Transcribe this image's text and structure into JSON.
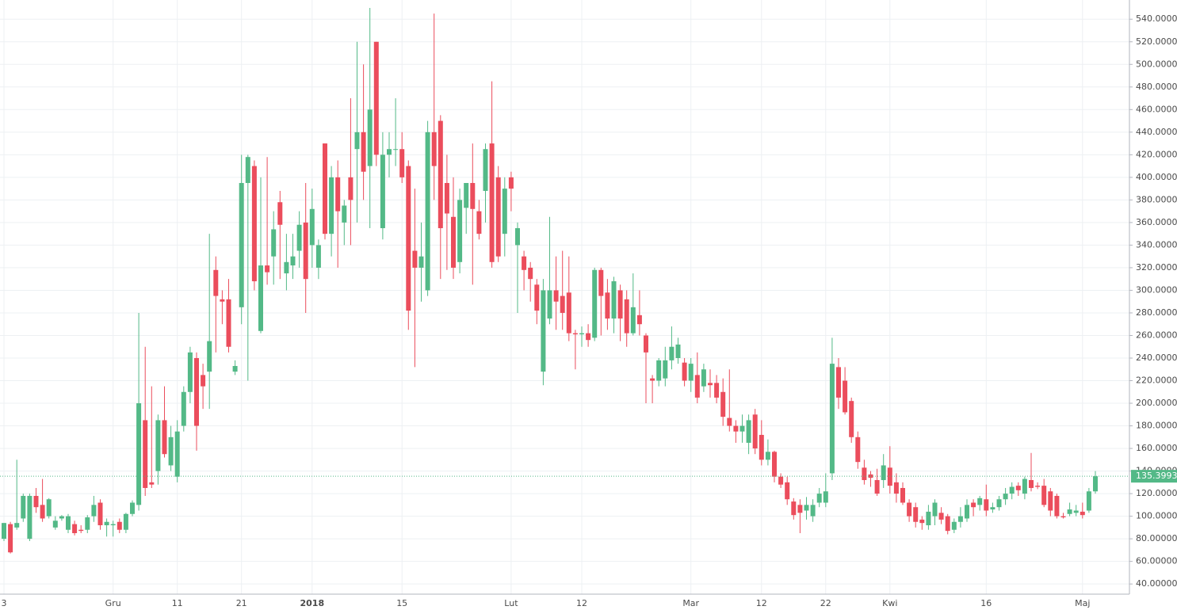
{
  "chart_data": {
    "type": "candlestick",
    "categories": [
      "3",
      null,
      null,
      null,
      null,
      null,
      null,
      null,
      null,
      null,
      null,
      null,
      null,
      null,
      null,
      null,
      null,
      "Gru",
      null,
      null,
      null,
      null,
      null,
      null,
      null,
      null,
      null,
      "11",
      null,
      null,
      null,
      null,
      null,
      null,
      null,
      null,
      null,
      "21",
      null,
      null,
      null,
      null,
      null,
      null,
      null,
      null,
      null,
      null,
      "2018",
      null,
      null,
      null,
      null,
      null,
      null,
      null,
      null,
      null,
      null,
      null,
      null,
      null,
      "15",
      null,
      null,
      null,
      null,
      null,
      null,
      null,
      null,
      null,
      null,
      null,
      null,
      null,
      null,
      null,
      null,
      "Lut",
      null,
      null,
      null,
      null,
      null,
      null,
      null,
      null,
      null,
      null,
      "12",
      null,
      null,
      null,
      null,
      null,
      null,
      null,
      null,
      null,
      null,
      null,
      null,
      null,
      null,
      null,
      null,
      "Mar",
      null,
      null,
      null,
      null,
      null,
      null,
      null,
      null,
      null,
      null,
      "12",
      null,
      null,
      null,
      null,
      null,
      null,
      null,
      null,
      null,
      "22",
      null,
      null,
      null,
      null,
      null,
      null,
      null,
      null,
      null,
      "Kwi",
      null,
      null,
      null,
      null,
      null,
      null,
      null,
      null,
      null,
      null,
      null,
      null,
      null,
      null,
      "16",
      null,
      null,
      null,
      null,
      null,
      null,
      null,
      null,
      null,
      null,
      null,
      null,
      null,
      null,
      "Maj",
      null,
      null
    ],
    "open": [
      80,
      93,
      90,
      98,
      80,
      118,
      110,
      100,
      90,
      98,
      88,
      93,
      88,
      88,
      100,
      112,
      92,
      92,
      95,
      88,
      102,
      110,
      185,
      130,
      140,
      185,
      145,
      135,
      180,
      210,
      240,
      225,
      228,
      318,
      292,
      292,
      228,
      285,
      395,
      410,
      264,
      322,
      330,
      378,
      315,
      322,
      335,
      360,
      340,
      320,
      430,
      350,
      400,
      360,
      400,
      425,
      440,
      410,
      520,
      355,
      420,
      425,
      425,
      410,
      335,
      320,
      300,
      440,
      450,
      395,
      365,
      325,
      373,
      395,
      370,
      388,
      430,
      400,
      350,
      400,
      340,
      330,
      320,
      305,
      228,
      275,
      300,
      295,
      298,
      262,
      261,
      262,
      258,
      318,
      298,
      275,
      300,
      292,
      262,
      278,
      260,
      222,
      220,
      222,
      238,
      240,
      236,
      220,
      225,
      215,
      218,
      218,
      210,
      187,
      180,
      175,
      165,
      190,
      172,
      150,
      157,
      135,
      130,
      113,
      110,
      105,
      100,
      112,
      112,
      138,
      232,
      220,
      202,
      170,
      143,
      137,
      132,
      132,
      143,
      130,
      125,
      112,
      108,
      97,
      92,
      100,
      103,
      100,
      88,
      95,
      98,
      112,
      110,
      115,
      106,
      108,
      115,
      120,
      127,
      120,
      132,
      127,
      127,
      122,
      118,
      100,
      102,
      103,
      104,
      105,
      122
    ],
    "high": [
      94,
      95,
      150,
      120,
      120,
      125,
      133,
      116,
      100,
      101,
      102,
      96,
      92,
      101,
      118,
      115,
      98,
      96,
      98,
      103,
      114,
      280,
      250,
      215,
      190,
      215,
      180,
      185,
      215,
      250,
      245,
      235,
      350,
      330,
      300,
      310,
      238,
      420,
      420,
      415,
      400,
      418,
      370,
      388,
      350,
      350,
      370,
      395,
      390,
      345,
      430,
      410,
      415,
      380,
      470,
      520,
      500,
      550,
      520,
      440,
      440,
      470,
      440,
      415,
      390,
      360,
      450,
      545,
      455,
      420,
      400,
      390,
      395,
      430,
      380,
      430,
      485,
      410,
      400,
      405,
      360,
      335,
      325,
      310,
      310,
      365,
      330,
      335,
      330,
      265,
      268,
      270,
      320,
      320,
      310,
      312,
      305,
      300,
      315,
      300,
      262,
      225,
      240,
      250,
      268,
      258,
      240,
      240,
      245,
      235,
      230,
      225,
      222,
      230,
      185,
      190,
      190,
      195,
      185,
      168,
      158,
      138,
      135,
      116,
      115,
      117,
      115,
      125,
      138,
      258,
      240,
      232,
      205,
      175,
      150,
      140,
      142,
      155,
      162,
      138,
      130,
      115,
      112,
      100,
      110,
      115,
      108,
      102,
      98,
      108,
      115,
      115,
      118,
      128,
      112,
      118,
      125,
      130,
      130,
      135,
      156,
      130,
      133,
      125,
      120,
      103,
      112,
      110,
      112,
      125,
      140
    ],
    "low": [
      78,
      67,
      88,
      95,
      78,
      103,
      95,
      98,
      88,
      96,
      85,
      83,
      85,
      85,
      95,
      88,
      82,
      82,
      85,
      85,
      100,
      105,
      118,
      125,
      128,
      152,
      140,
      130,
      175,
      200,
      158,
      195,
      195,
      245,
      270,
      245,
      225,
      270,
      220,
      300,
      262,
      305,
      305,
      310,
      300,
      310,
      320,
      280,
      320,
      310,
      345,
      330,
      320,
      340,
      340,
      360,
      380,
      355,
      410,
      345,
      400,
      410,
      395,
      265,
      232,
      290,
      295,
      380,
      310,
      318,
      310,
      315,
      350,
      305,
      345,
      360,
      320,
      325,
      330,
      370,
      280,
      300,
      290,
      270,
      216,
      270,
      265,
      265,
      255,
      230,
      250,
      250,
      255,
      260,
      265,
      262,
      255,
      250,
      260,
      260,
      200,
      200,
      215,
      215,
      230,
      235,
      215,
      210,
      200,
      210,
      205,
      200,
      180,
      175,
      165,
      165,
      155,
      155,
      145,
      145,
      130,
      125,
      110,
      97,
      85,
      97,
      95,
      108,
      108,
      132,
      195,
      190,
      165,
      142,
      128,
      126,
      118,
      125,
      120,
      112,
      110,
      95,
      90,
      88,
      88,
      92,
      93,
      84,
      85,
      90,
      95,
      100,
      105,
      100,
      103,
      105,
      110,
      115,
      118,
      115,
      122,
      124,
      108,
      100,
      98,
      98,
      100,
      100,
      98,
      103,
      120
    ],
    "close": [
      94,
      68,
      94,
      118,
      118,
      108,
      98,
      115,
      96,
      100,
      100,
      85,
      87,
      99,
      110,
      92,
      95,
      93,
      88,
      102,
      112,
      200,
      125,
      128,
      185,
      155,
      170,
      175,
      210,
      245,
      180,
      215,
      255,
      295,
      290,
      250,
      233,
      395,
      418,
      308,
      322,
      316,
      354,
      358,
      325,
      330,
      358,
      310,
      372,
      340,
      350,
      400,
      370,
      375,
      380,
      440,
      405,
      460,
      420,
      420,
      425,
      425,
      400,
      282,
      320,
      330,
      440,
      410,
      355,
      368,
      320,
      380,
      395,
      372,
      350,
      425,
      325,
      330,
      390,
      390,
      355,
      318,
      310,
      282,
      300,
      300,
      290,
      280,
      262,
      261,
      262,
      256,
      318,
      295,
      275,
      308,
      275,
      262,
      285,
      270,
      245,
      220,
      238,
      238,
      250,
      252,
      220,
      235,
      205,
      230,
      216,
      205,
      188,
      180,
      175,
      180,
      185,
      160,
      150,
      157,
      135,
      128,
      115,
      101,
      103,
      110,
      110,
      120,
      122,
      235,
      205,
      192,
      170,
      148,
      132,
      134,
      120,
      145,
      127,
      120,
      112,
      100,
      95,
      94,
      104,
      112,
      97,
      87,
      95,
      100,
      110,
      108,
      116,
      105,
      108,
      115,
      120,
      126,
      123,
      133,
      125,
      126,
      110,
      105,
      100,
      99,
      106,
      105,
      101,
      122,
      135.39931
    ],
    "up_color": "#53b987",
    "down_color": "#eb4d5c",
    "last_price": 135.39931,
    "ylim": [
      31,
      557
    ],
    "yticks": [
      {
        "value": 40,
        "label": "40.00000"
      },
      {
        "value": 60,
        "label": "60.00000"
      },
      {
        "value": 80,
        "label": "80.00000"
      },
      {
        "value": 100,
        "label": "100.00000"
      },
      {
        "value": 120,
        "label": "120.00000"
      },
      {
        "value": 140,
        "label": "140.00000"
      },
      {
        "value": 160,
        "label": "160.00000"
      },
      {
        "value": 180,
        "label": "180.00000"
      },
      {
        "value": 200,
        "label": "200.00000"
      },
      {
        "value": 220,
        "label": "220.00000"
      },
      {
        "value": 240,
        "label": "240.00000"
      },
      {
        "value": 260,
        "label": "260.00000"
      },
      {
        "value": 280,
        "label": "280.00000"
      },
      {
        "value": 300,
        "label": "300.00000"
      },
      {
        "value": 320,
        "label": "320.00000"
      },
      {
        "value": 340,
        "label": "340.00000"
      },
      {
        "value": 360,
        "label": "360.00000"
      },
      {
        "value": 380,
        "label": "380.00000"
      },
      {
        "value": 400,
        "label": "400.00000"
      },
      {
        "value": 420,
        "label": "420.00000"
      },
      {
        "value": 440,
        "label": "440.00000"
      },
      {
        "value": 460,
        "label": "460.00000"
      },
      {
        "value": 480,
        "label": "480.00000"
      },
      {
        "value": 500,
        "label": "500.00000"
      },
      {
        "value": 520,
        "label": "520.00000"
      },
      {
        "value": 540,
        "label": "540.00000"
      }
    ],
    "grid": true
  }
}
